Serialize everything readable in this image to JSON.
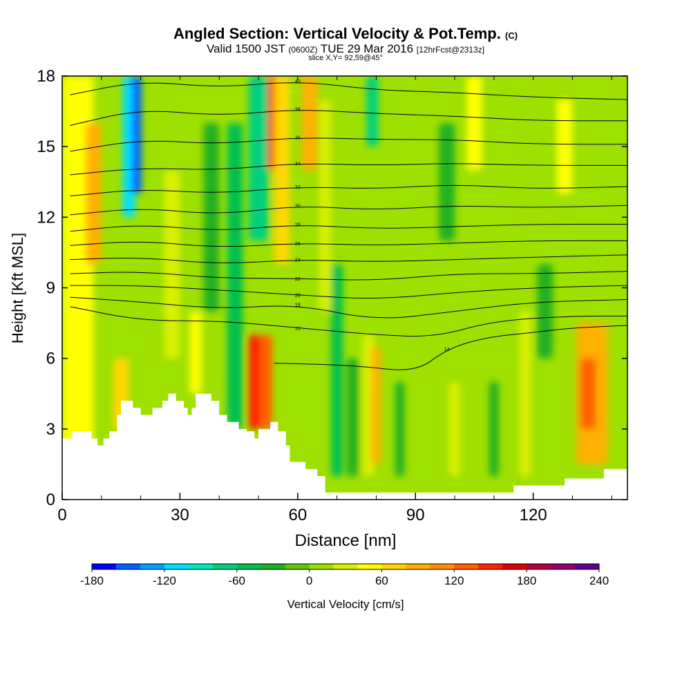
{
  "header": {
    "title_main": "Angled Section: Vertical Velocity & Pot.Temp.",
    "title_unit": "(C)",
    "valid_a": "Valid 1500 JST",
    "valid_b": "(0600Z)",
    "valid_c": "TUE 29 Mar 2016",
    "valid_d": "[12hrFcst@2313z]",
    "slice": "slice X,Y= 92,59@45°"
  },
  "colors": {
    "fill_base": "#9ee000",
    "terrain": "#ffffff",
    "contour": "#000000",
    "palette": [
      "#0000ff",
      "#0060ff",
      "#00a0ff",
      "#00e0ff",
      "#00e8c0",
      "#00d080",
      "#00c050",
      "#20b020",
      "#60c800",
      "#9ee000",
      "#d8f000",
      "#ffff00",
      "#ffd700",
      "#ffb000",
      "#ff9000",
      "#ff6000",
      "#ff2000",
      "#e00000",
      "#b00040",
      "#900070",
      "#600090"
    ]
  },
  "chart_data": {
    "type": "heatmap",
    "xlabel": "Distance [nm]",
    "ylabel": "Height [Kft MSL]",
    "xlim": [
      0,
      144
    ],
    "ylim": [
      0,
      18
    ],
    "xticks": [
      0,
      30,
      60,
      90,
      120
    ],
    "yticks": [
      0,
      3,
      6,
      9,
      12,
      15,
      18
    ],
    "colorbar": {
      "label": "Vertical Velocity [cm/s]",
      "min": -180,
      "max": 240,
      "step": 20,
      "tick_labels": [
        "-180",
        "-120",
        "-60",
        "0",
        "60",
        "120",
        "180",
        "240"
      ],
      "tick_values": [
        -180,
        -120,
        -60,
        0,
        60,
        120,
        180,
        240
      ]
    },
    "vertical_velocity_columns": [
      {
        "x": 4,
        "halfwidth": 4,
        "base": 0,
        "top": 18,
        "value": 50
      },
      {
        "x": 8,
        "halfwidth": 2,
        "base": 10,
        "top": 16,
        "value": 80
      },
      {
        "x": 15,
        "halfwidth": 2,
        "base": 3,
        "top": 6,
        "value": 70
      },
      {
        "x": 17,
        "halfwidth": 1.6,
        "base": 12,
        "top": 18,
        "value": -120
      },
      {
        "x": 19,
        "halfwidth": 1.2,
        "base": 13,
        "top": 18,
        "value": -150
      },
      {
        "x": 28,
        "halfwidth": 2,
        "base": 6,
        "top": 14,
        "value": 35
      },
      {
        "x": 34,
        "halfwidth": 1.5,
        "base": 4.5,
        "top": 8,
        "value": 40
      },
      {
        "x": 38,
        "halfwidth": 2,
        "base": 8,
        "top": 16,
        "value": -40
      },
      {
        "x": 44,
        "halfwidth": 2,
        "base": 3,
        "top": 16,
        "value": -60
      },
      {
        "x": 50,
        "halfwidth": 2.5,
        "base": 11,
        "top": 18,
        "value": -70
      },
      {
        "x": 49,
        "halfwidth": 1.5,
        "base": 3,
        "top": 7,
        "value": 140
      },
      {
        "x": 52,
        "halfwidth": 1.5,
        "base": 3,
        "top": 7,
        "value": 130
      },
      {
        "x": 54,
        "halfwidth": 1.5,
        "base": 14,
        "top": 18,
        "value": 150
      },
      {
        "x": 56,
        "halfwidth": 2,
        "base": 10,
        "top": 18,
        "value": 60
      },
      {
        "x": 63,
        "halfwidth": 2,
        "base": 14,
        "top": 18,
        "value": 80
      },
      {
        "x": 67,
        "halfwidth": 1.5,
        "base": 8,
        "top": 17,
        "value": 30
      },
      {
        "x": 70,
        "halfwidth": 1.5,
        "base": 1,
        "top": 10,
        "value": -50
      },
      {
        "x": 74,
        "halfwidth": 1.5,
        "base": 1,
        "top": 6,
        "value": -40
      },
      {
        "x": 78,
        "halfwidth": 1.5,
        "base": 1,
        "top": 7,
        "value": 30
      },
      {
        "x": 80,
        "halfwidth": 1.2,
        "base": 1.5,
        "top": 6.5,
        "value": 90
      },
      {
        "x": 79,
        "halfwidth": 1.5,
        "base": 15,
        "top": 18,
        "value": -70
      },
      {
        "x": 86,
        "halfwidth": 1.2,
        "base": 1,
        "top": 5,
        "value": -40
      },
      {
        "x": 98,
        "halfwidth": 2,
        "base": 11,
        "top": 16,
        "value": -40
      },
      {
        "x": 100,
        "halfwidth": 1.5,
        "base": 1,
        "top": 5,
        "value": 30
      },
      {
        "x": 105,
        "halfwidth": 2,
        "base": 14,
        "top": 18,
        "value": 40
      },
      {
        "x": 110,
        "halfwidth": 1.2,
        "base": 1,
        "top": 5,
        "value": -40
      },
      {
        "x": 118,
        "halfwidth": 1.5,
        "base": 1,
        "top": 8,
        "value": 30
      },
      {
        "x": 123,
        "halfwidth": 2,
        "base": 6,
        "top": 10,
        "value": -40
      },
      {
        "x": 128,
        "halfwidth": 2,
        "base": 13,
        "top": 17,
        "value": 40
      },
      {
        "x": 135,
        "halfwidth": 4,
        "base": 1.5,
        "top": 7.5,
        "value": 90
      },
      {
        "x": 134,
        "halfwidth": 2,
        "base": 3,
        "top": 6,
        "value": 120
      }
    ],
    "terrain_profile": [
      {
        "x": 0,
        "height": 2.6
      },
      {
        "x": 2.5,
        "height": 2.9
      },
      {
        "x": 7.5,
        "height": 2.6
      },
      {
        "x": 9,
        "height": 2.3
      },
      {
        "x": 10.5,
        "height": 2.6
      },
      {
        "x": 12,
        "height": 2.9
      },
      {
        "x": 14,
        "height": 3.6
      },
      {
        "x": 15,
        "height": 4.2
      },
      {
        "x": 18,
        "height": 3.9
      },
      {
        "x": 20,
        "height": 3.6
      },
      {
        "x": 23,
        "height": 3.9
      },
      {
        "x": 25.5,
        "height": 4.2
      },
      {
        "x": 27,
        "height": 4.5
      },
      {
        "x": 29,
        "height": 4.2
      },
      {
        "x": 31,
        "height": 3.9
      },
      {
        "x": 32,
        "height": 3.6
      },
      {
        "x": 33,
        "height": 3.9
      },
      {
        "x": 34,
        "height": 4.5
      },
      {
        "x": 38,
        "height": 4.2
      },
      {
        "x": 40,
        "height": 3.6
      },
      {
        "x": 42,
        "height": 3.3
      },
      {
        "x": 45,
        "height": 3.0
      },
      {
        "x": 47,
        "height": 2.9
      },
      {
        "x": 49,
        "height": 2.6
      },
      {
        "x": 50,
        "height": 3.0
      },
      {
        "x": 53,
        "height": 3.3
      },
      {
        "x": 55,
        "height": 2.9
      },
      {
        "x": 57,
        "height": 2.3
      },
      {
        "x": 58,
        "height": 1.6
      },
      {
        "x": 62,
        "height": 1.3
      },
      {
        "x": 65,
        "height": 1.0
      },
      {
        "x": 67,
        "height": 0.3
      },
      {
        "x": 90,
        "height": 0.3
      },
      {
        "x": 113,
        "height": 0.3
      },
      {
        "x": 115,
        "height": 0.6
      },
      {
        "x": 128,
        "height": 0.9
      },
      {
        "x": 138,
        "height": 1.3
      },
      {
        "x": 144,
        "height": 1.3
      }
    ],
    "potential_temperature_contours": [
      {
        "value": 14,
        "points": [
          [
            54,
            5.8
          ],
          [
            75,
            5.7
          ],
          [
            90,
            5.4
          ],
          [
            98,
            6.4
          ],
          [
            108,
            6.9
          ],
          [
            120,
            7.1
          ],
          [
            130,
            7.3
          ],
          [
            144,
            7.4
          ]
        ]
      },
      {
        "value": 16,
        "points": [
          [
            2,
            8.2
          ],
          [
            20,
            7.6
          ],
          [
            40,
            7.6
          ],
          [
            60,
            7.3
          ],
          [
            80,
            7.0
          ],
          [
            95,
            6.9
          ],
          [
            110,
            7.6
          ],
          [
            130,
            7.8
          ],
          [
            144,
            7.8
          ]
        ]
      },
      {
        "value": 18,
        "points": [
          [
            2,
            8.6
          ],
          [
            20,
            8.4
          ],
          [
            40,
            8.1
          ],
          [
            60,
            8.3
          ],
          [
            80,
            7.6
          ],
          [
            100,
            8.0
          ],
          [
            120,
            8.4
          ],
          [
            144,
            8.5
          ]
        ]
      },
      {
        "value": 20,
        "points": [
          [
            2,
            9.1
          ],
          [
            20,
            9.1
          ],
          [
            40,
            8.9
          ],
          [
            60,
            8.7
          ],
          [
            80,
            8.5
          ],
          [
            100,
            8.8
          ],
          [
            120,
            9.0
          ],
          [
            144,
            9.1
          ]
        ]
      },
      {
        "value": 22,
        "points": [
          [
            2,
            9.6
          ],
          [
            20,
            9.7
          ],
          [
            40,
            9.4
          ],
          [
            60,
            9.4
          ],
          [
            80,
            9.3
          ],
          [
            100,
            9.6
          ],
          [
            120,
            9.6
          ],
          [
            144,
            9.7
          ]
        ]
      },
      {
        "value": 24,
        "points": [
          [
            2,
            10.2
          ],
          [
            20,
            10.3
          ],
          [
            40,
            10.0
          ],
          [
            60,
            10.2
          ],
          [
            80,
            10.1
          ],
          [
            100,
            10.2
          ],
          [
            120,
            10.3
          ],
          [
            144,
            10.4
          ]
        ]
      },
      {
        "value": 26,
        "points": [
          [
            2,
            10.8
          ],
          [
            20,
            11.0
          ],
          [
            40,
            10.7
          ],
          [
            60,
            10.9
          ],
          [
            80,
            10.8
          ],
          [
            100,
            10.9
          ],
          [
            120,
            11.0
          ],
          [
            144,
            11.0
          ]
        ]
      },
      {
        "value": 28,
        "points": [
          [
            2,
            11.4
          ],
          [
            20,
            11.7
          ],
          [
            40,
            11.4
          ],
          [
            60,
            11.7
          ],
          [
            80,
            11.5
          ],
          [
            100,
            11.6
          ],
          [
            120,
            11.7
          ],
          [
            144,
            11.7
          ]
        ]
      },
      {
        "value": 30,
        "points": [
          [
            2,
            12.1
          ],
          [
            20,
            12.4
          ],
          [
            40,
            12.1
          ],
          [
            60,
            12.5
          ],
          [
            80,
            12.3
          ],
          [
            100,
            12.5
          ],
          [
            120,
            12.4
          ],
          [
            144,
            12.5
          ]
        ]
      },
      {
        "value": 32,
        "points": [
          [
            2,
            12.9
          ],
          [
            20,
            13.2
          ],
          [
            40,
            13.0
          ],
          [
            60,
            13.3
          ],
          [
            80,
            13.2
          ],
          [
            100,
            13.4
          ],
          [
            120,
            13.2
          ],
          [
            144,
            13.3
          ]
        ]
      },
      {
        "value": 34,
        "points": [
          [
            2,
            13.8
          ],
          [
            20,
            14.1
          ],
          [
            40,
            14.0
          ],
          [
            60,
            14.3
          ],
          [
            80,
            14.2
          ],
          [
            100,
            14.3
          ],
          [
            120,
            14.2
          ],
          [
            144,
            14.2
          ]
        ]
      },
      {
        "value": 36,
        "points": [
          [
            2,
            14.8
          ],
          [
            20,
            15.3
          ],
          [
            40,
            15.1
          ],
          [
            60,
            15.4
          ],
          [
            80,
            15.3
          ],
          [
            100,
            15.3
          ],
          [
            120,
            15.1
          ],
          [
            144,
            15.1
          ]
        ]
      },
      {
        "value": 38,
        "points": [
          [
            2,
            15.9
          ],
          [
            20,
            16.6
          ],
          [
            40,
            16.3
          ],
          [
            60,
            16.6
          ],
          [
            80,
            16.4
          ],
          [
            100,
            16.3
          ],
          [
            120,
            16.1
          ],
          [
            144,
            16.1
          ]
        ]
      },
      {
        "value": 40,
        "points": [
          [
            2,
            17.2
          ],
          [
            20,
            17.8
          ],
          [
            40,
            17.5
          ],
          [
            60,
            17.8
          ],
          [
            80,
            17.4
          ],
          [
            100,
            17.3
          ],
          [
            120,
            17.1
          ],
          [
            144,
            17.0
          ]
        ]
      }
    ]
  }
}
